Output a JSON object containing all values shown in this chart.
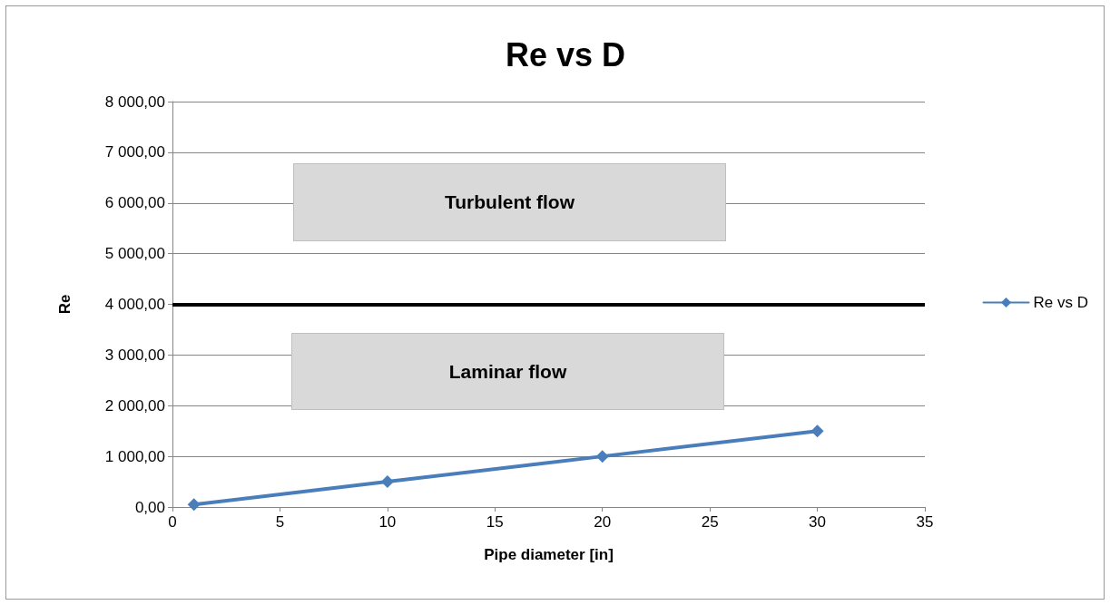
{
  "chart_data": {
    "type": "line",
    "title": "Re vs D",
    "xlabel": "Pipe diameter [in]",
    "ylabel": "Re",
    "x": [
      1,
      10,
      20,
      30
    ],
    "series": [
      {
        "name": "Re vs D",
        "color": "#4a7ebb",
        "values": [
          50,
          500,
          1000,
          1500
        ]
      }
    ],
    "xlim": [
      0,
      35
    ],
    "xticks": [
      0,
      5,
      10,
      15,
      20,
      25,
      30,
      35
    ],
    "ylim": [
      0,
      8000
    ],
    "yticks": [
      {
        "value": 0,
        "label": "0,00"
      },
      {
        "value": 1000,
        "label": "1 000,00"
      },
      {
        "value": 2000,
        "label": "2 000,00"
      },
      {
        "value": 3000,
        "label": "3 000,00"
      },
      {
        "value": 4000,
        "label": "4 000,00"
      },
      {
        "value": 5000,
        "label": "5 000,00"
      },
      {
        "value": 6000,
        "label": "6 000,00"
      },
      {
        "value": 7000,
        "label": "7 000,00"
      },
      {
        "value": 8000,
        "label": "8 000,00"
      }
    ],
    "ref_lines": [
      {
        "axis": "y",
        "value": 4000,
        "color": "#000000"
      }
    ],
    "annotations": [
      "Turbulent flow",
      "Laminar flow"
    ],
    "grid": "y",
    "legend": "right",
    "marker": "diamond",
    "line_style": "solid"
  }
}
